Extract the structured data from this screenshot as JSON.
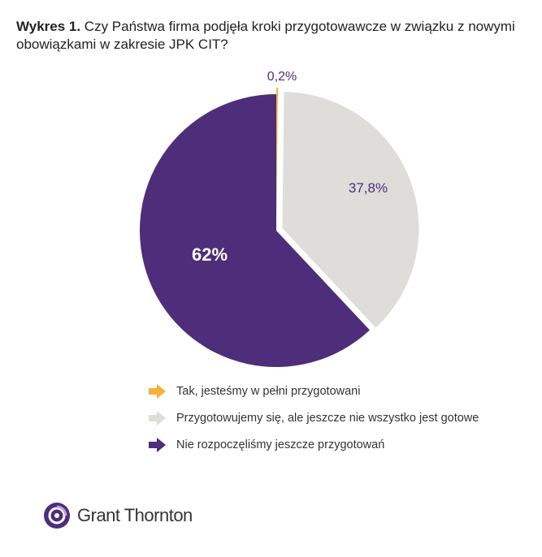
{
  "header": {
    "title_bold": "Wykres 1.",
    "title_rest": " Czy Państwa firma podjęła kroki przygotowawcze w związku z nowymi obowiązkami w zakresie JPK CIT?"
  },
  "chart_data": {
    "type": "pie",
    "title": "Wykres 1. Czy Państwa firma podjęła kroki przygotowawcze w związku z nowymi obowiązkami w zakresie JPK CIT?",
    "slices": [
      {
        "label": "Tak, jesteśmy w pełni przygotowani",
        "value": 0.2,
        "display": "0,2%",
        "color": "#f4b23b",
        "label_color": "#4e2d7a"
      },
      {
        "label": "Przygotowujemy się, ale jeszcze nie wszystko jest gotowe",
        "value": 37.8,
        "display": "37,8%",
        "color": "#deddd9",
        "label_color": "#4e2d7a"
      },
      {
        "label": "Nie rozpoczęliśmy jeszcze przygotowań",
        "value": 62,
        "display": "62%",
        "color": "#4e2d7a",
        "label_color": "#ffffff"
      }
    ],
    "legend_position": "bottom-left"
  },
  "logo": {
    "text": "Grant Thornton",
    "icon": "grant-thornton-logo-icon",
    "color": "#4e2d7a"
  }
}
